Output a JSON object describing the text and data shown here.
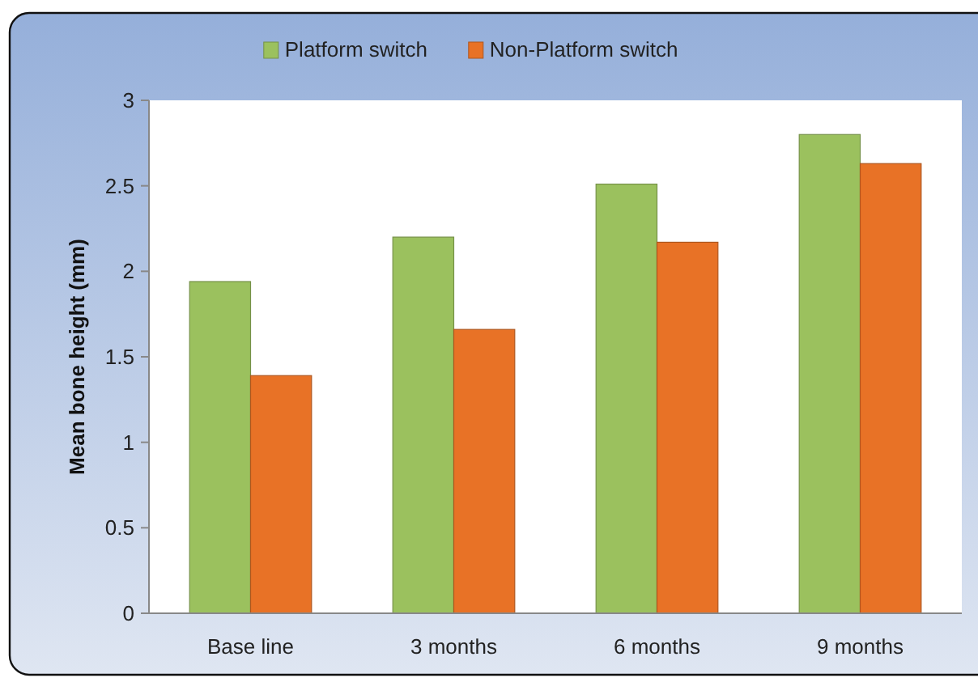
{
  "chart_data": {
    "type": "bar",
    "ylabel": "Mean bone height (mm)",
    "categories": [
      "Base line",
      "3 months",
      "6 months",
      "9 months"
    ],
    "series": [
      {
        "name": "Platform switch",
        "color": "#9bc15e",
        "values": [
          1.94,
          2.2,
          2.51,
          2.8
        ]
      },
      {
        "name": "Non-Platform switch",
        "color": "#e87226",
        "values": [
          1.39,
          1.66,
          2.17,
          2.63
        ]
      }
    ],
    "ylim": [
      0,
      3
    ],
    "yticks": [
      0,
      0.5,
      1,
      1.5,
      2,
      2.5,
      3
    ],
    "legend": "top",
    "grid": false
  }
}
